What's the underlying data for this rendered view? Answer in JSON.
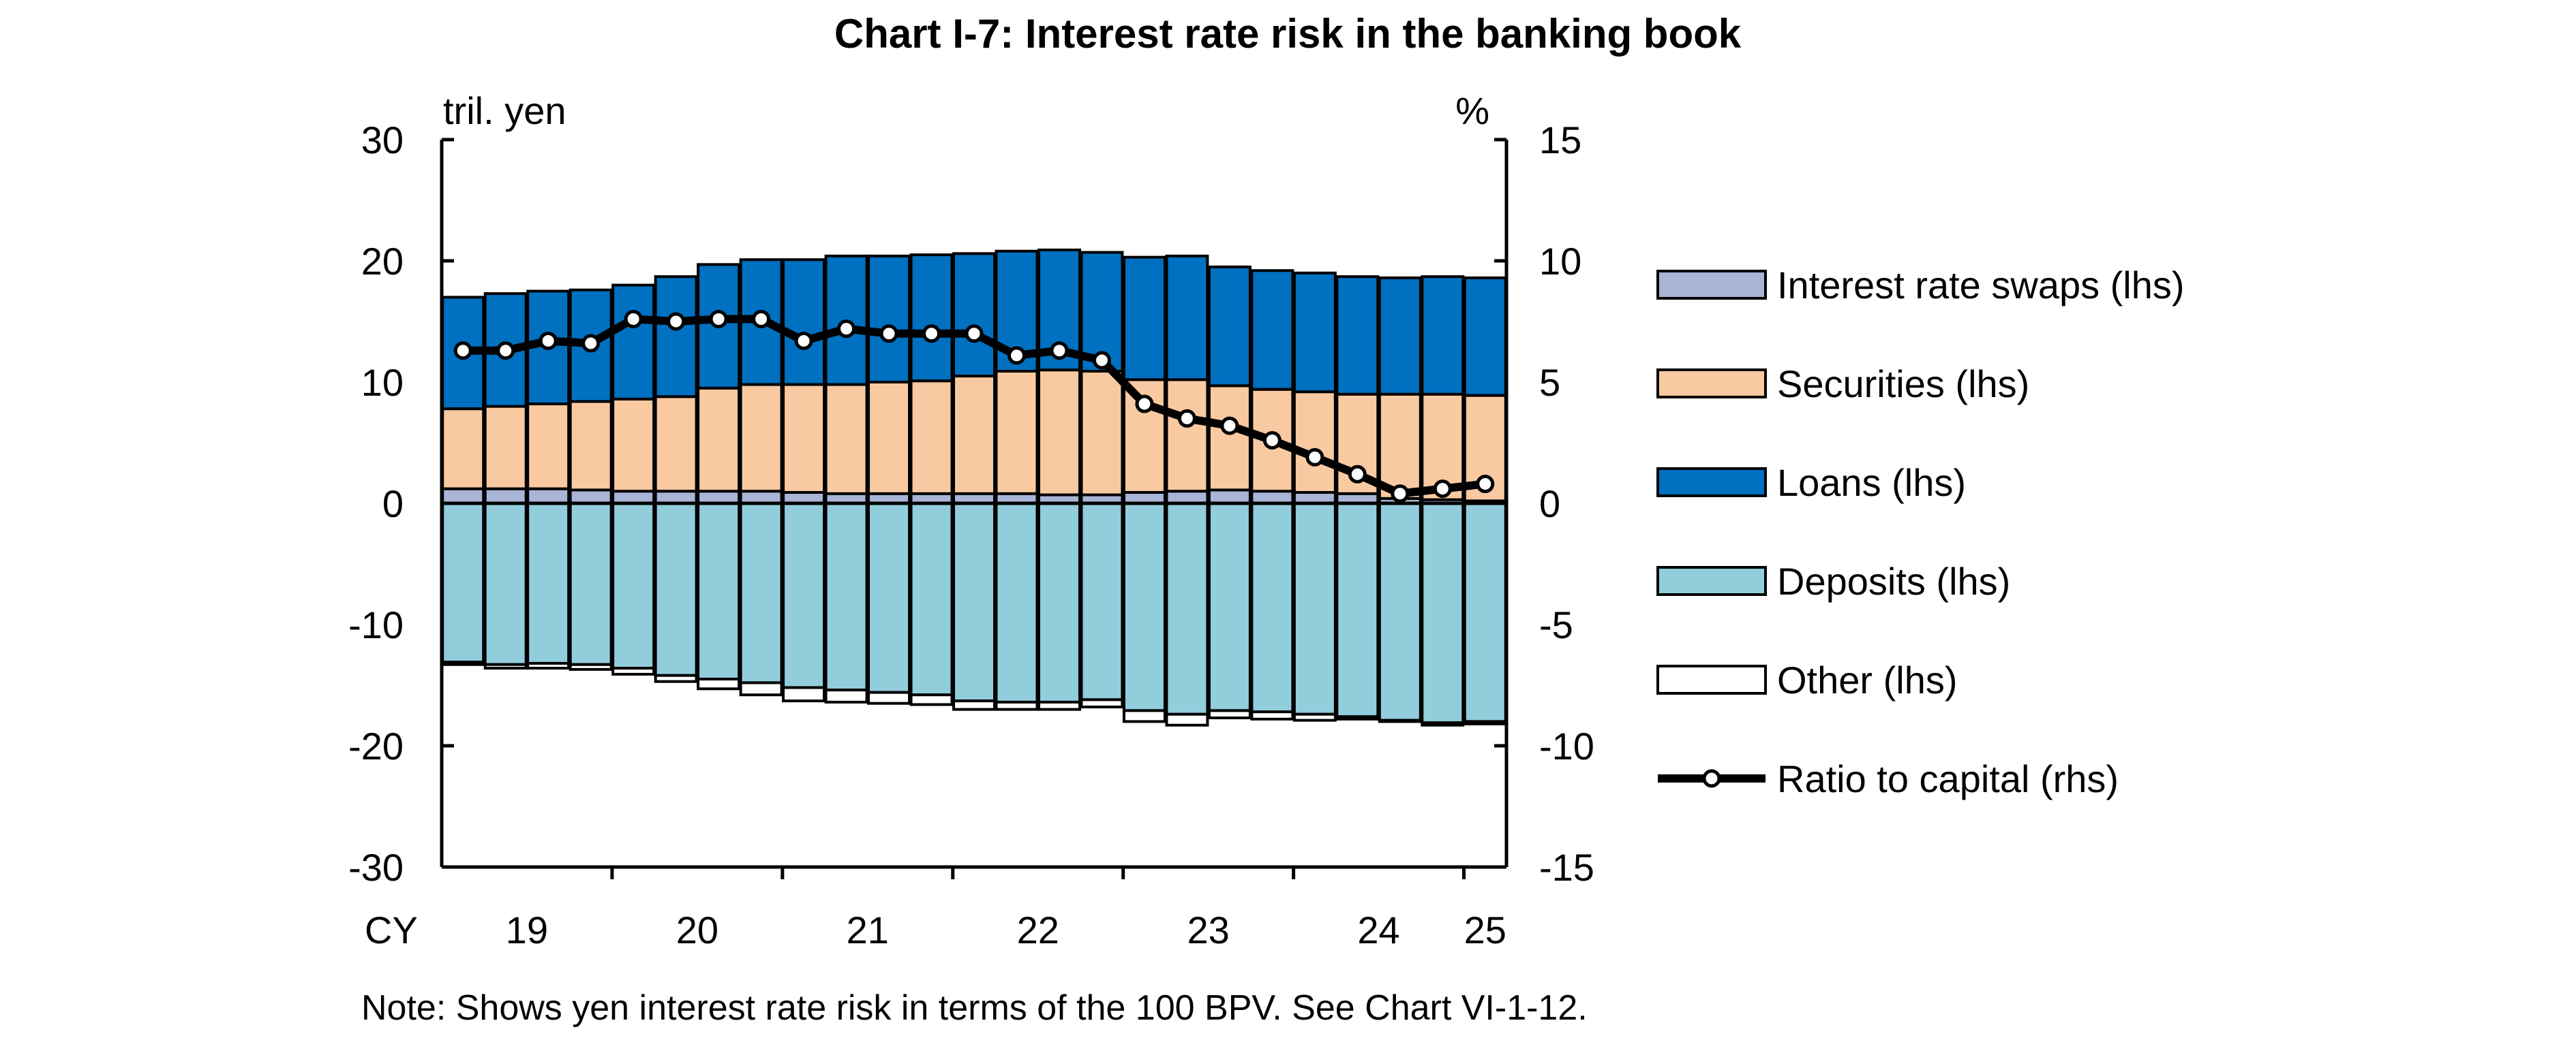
{
  "chart_data": {
    "type": "bar",
    "title": "Chart I-7: Interest rate risk in the banking book",
    "note": "Note: Shows yen interest rate risk in terms of the 100 BPV. See Chart VI-1-12.",
    "y_left_unit": "tril. yen",
    "y_right_unit": "%",
    "x_prefix": "CY",
    "ylim_left": [
      -30,
      30
    ],
    "ylim_right": [
      -15,
      15
    ],
    "y_left_ticks": [
      30,
      20,
      10,
      0,
      -10,
      -20,
      -30
    ],
    "y_right_ticks": [
      15,
      10,
      5,
      0,
      -5,
      -10,
      -15
    ],
    "x_year_labels": [
      "19",
      "20",
      "21",
      "22",
      "23",
      "24",
      "25"
    ],
    "quarters_per_year": 4,
    "n_periods": 25,
    "stacking": "positive series stacked upward from 0, negative series stacked downward from 0",
    "series": [
      {
        "name": "Interest rate swaps (lhs)",
        "axis": "left",
        "kind": "bar",
        "color": "#a9b4d6",
        "values": [
          1.2,
          1.2,
          1.2,
          1.1,
          1.0,
          1.0,
          1.0,
          1.0,
          0.9,
          0.8,
          0.8,
          0.8,
          0.8,
          0.8,
          0.7,
          0.7,
          0.9,
          1.0,
          1.1,
          1.0,
          0.9,
          0.8,
          0.4,
          0.3,
          0.2
        ]
      },
      {
        "name": "Securities (lhs)",
        "axis": "left",
        "kind": "bar",
        "color": "#f9c9a1",
        "values": [
          6.6,
          6.8,
          7.0,
          7.3,
          7.6,
          7.8,
          8.5,
          8.8,
          8.9,
          9.0,
          9.2,
          9.3,
          9.7,
          10.1,
          10.3,
          10.2,
          9.3,
          9.2,
          8.6,
          8.4,
          8.3,
          8.2,
          8.6,
          8.7,
          8.7
        ]
      },
      {
        "name": "Loans (lhs)",
        "axis": "left",
        "kind": "bar",
        "color": "#0070c0",
        "values": [
          9.2,
          9.3,
          9.3,
          9.2,
          9.4,
          9.9,
          10.2,
          10.3,
          10.3,
          10.6,
          10.4,
          10.4,
          10.1,
          9.9,
          9.9,
          9.8,
          10.1,
          10.2,
          9.8,
          9.8,
          9.8,
          9.7,
          9.6,
          9.7,
          9.7
        ]
      },
      {
        "name": "Deposits (lhs)",
        "axis": "left",
        "kind": "bar",
        "color": "#92cddc",
        "values": [
          -13.1,
          -13.3,
          -13.2,
          -13.3,
          -13.6,
          -14.2,
          -14.5,
          -14.8,
          -15.2,
          -15.4,
          -15.6,
          -15.8,
          -16.3,
          -16.4,
          -16.4,
          -16.2,
          -17.1,
          -17.4,
          -17.1,
          -17.2,
          -17.4,
          -17.6,
          -17.9,
          -18.1,
          -18.0
        ]
      },
      {
        "name": "Other (lhs)",
        "axis": "left",
        "kind": "bar",
        "color": "#ffffff",
        "values": [
          -0.2,
          -0.3,
          -0.4,
          -0.4,
          -0.5,
          -0.5,
          -0.8,
          -1.0,
          -1.1,
          -1.0,
          -0.9,
          -0.8,
          -0.7,
          -0.6,
          -0.6,
          -0.6,
          -0.9,
          -0.9,
          -0.6,
          -0.6,
          -0.5,
          -0.2,
          -0.1,
          -0.2,
          -0.2
        ]
      },
      {
        "name": "Ratio to capital (rhs)",
        "axis": "right",
        "kind": "line",
        "color": "#000000",
        "values": [
          6.3,
          6.3,
          6.7,
          6.6,
          7.6,
          7.5,
          7.6,
          7.6,
          6.7,
          7.2,
          7.0,
          7.0,
          7.0,
          6.1,
          6.3,
          5.9,
          4.1,
          3.5,
          3.2,
          2.6,
          1.9,
          1.2,
          0.4,
          0.6,
          0.8
        ]
      }
    ],
    "legend_position": "right",
    "grid": false
  }
}
